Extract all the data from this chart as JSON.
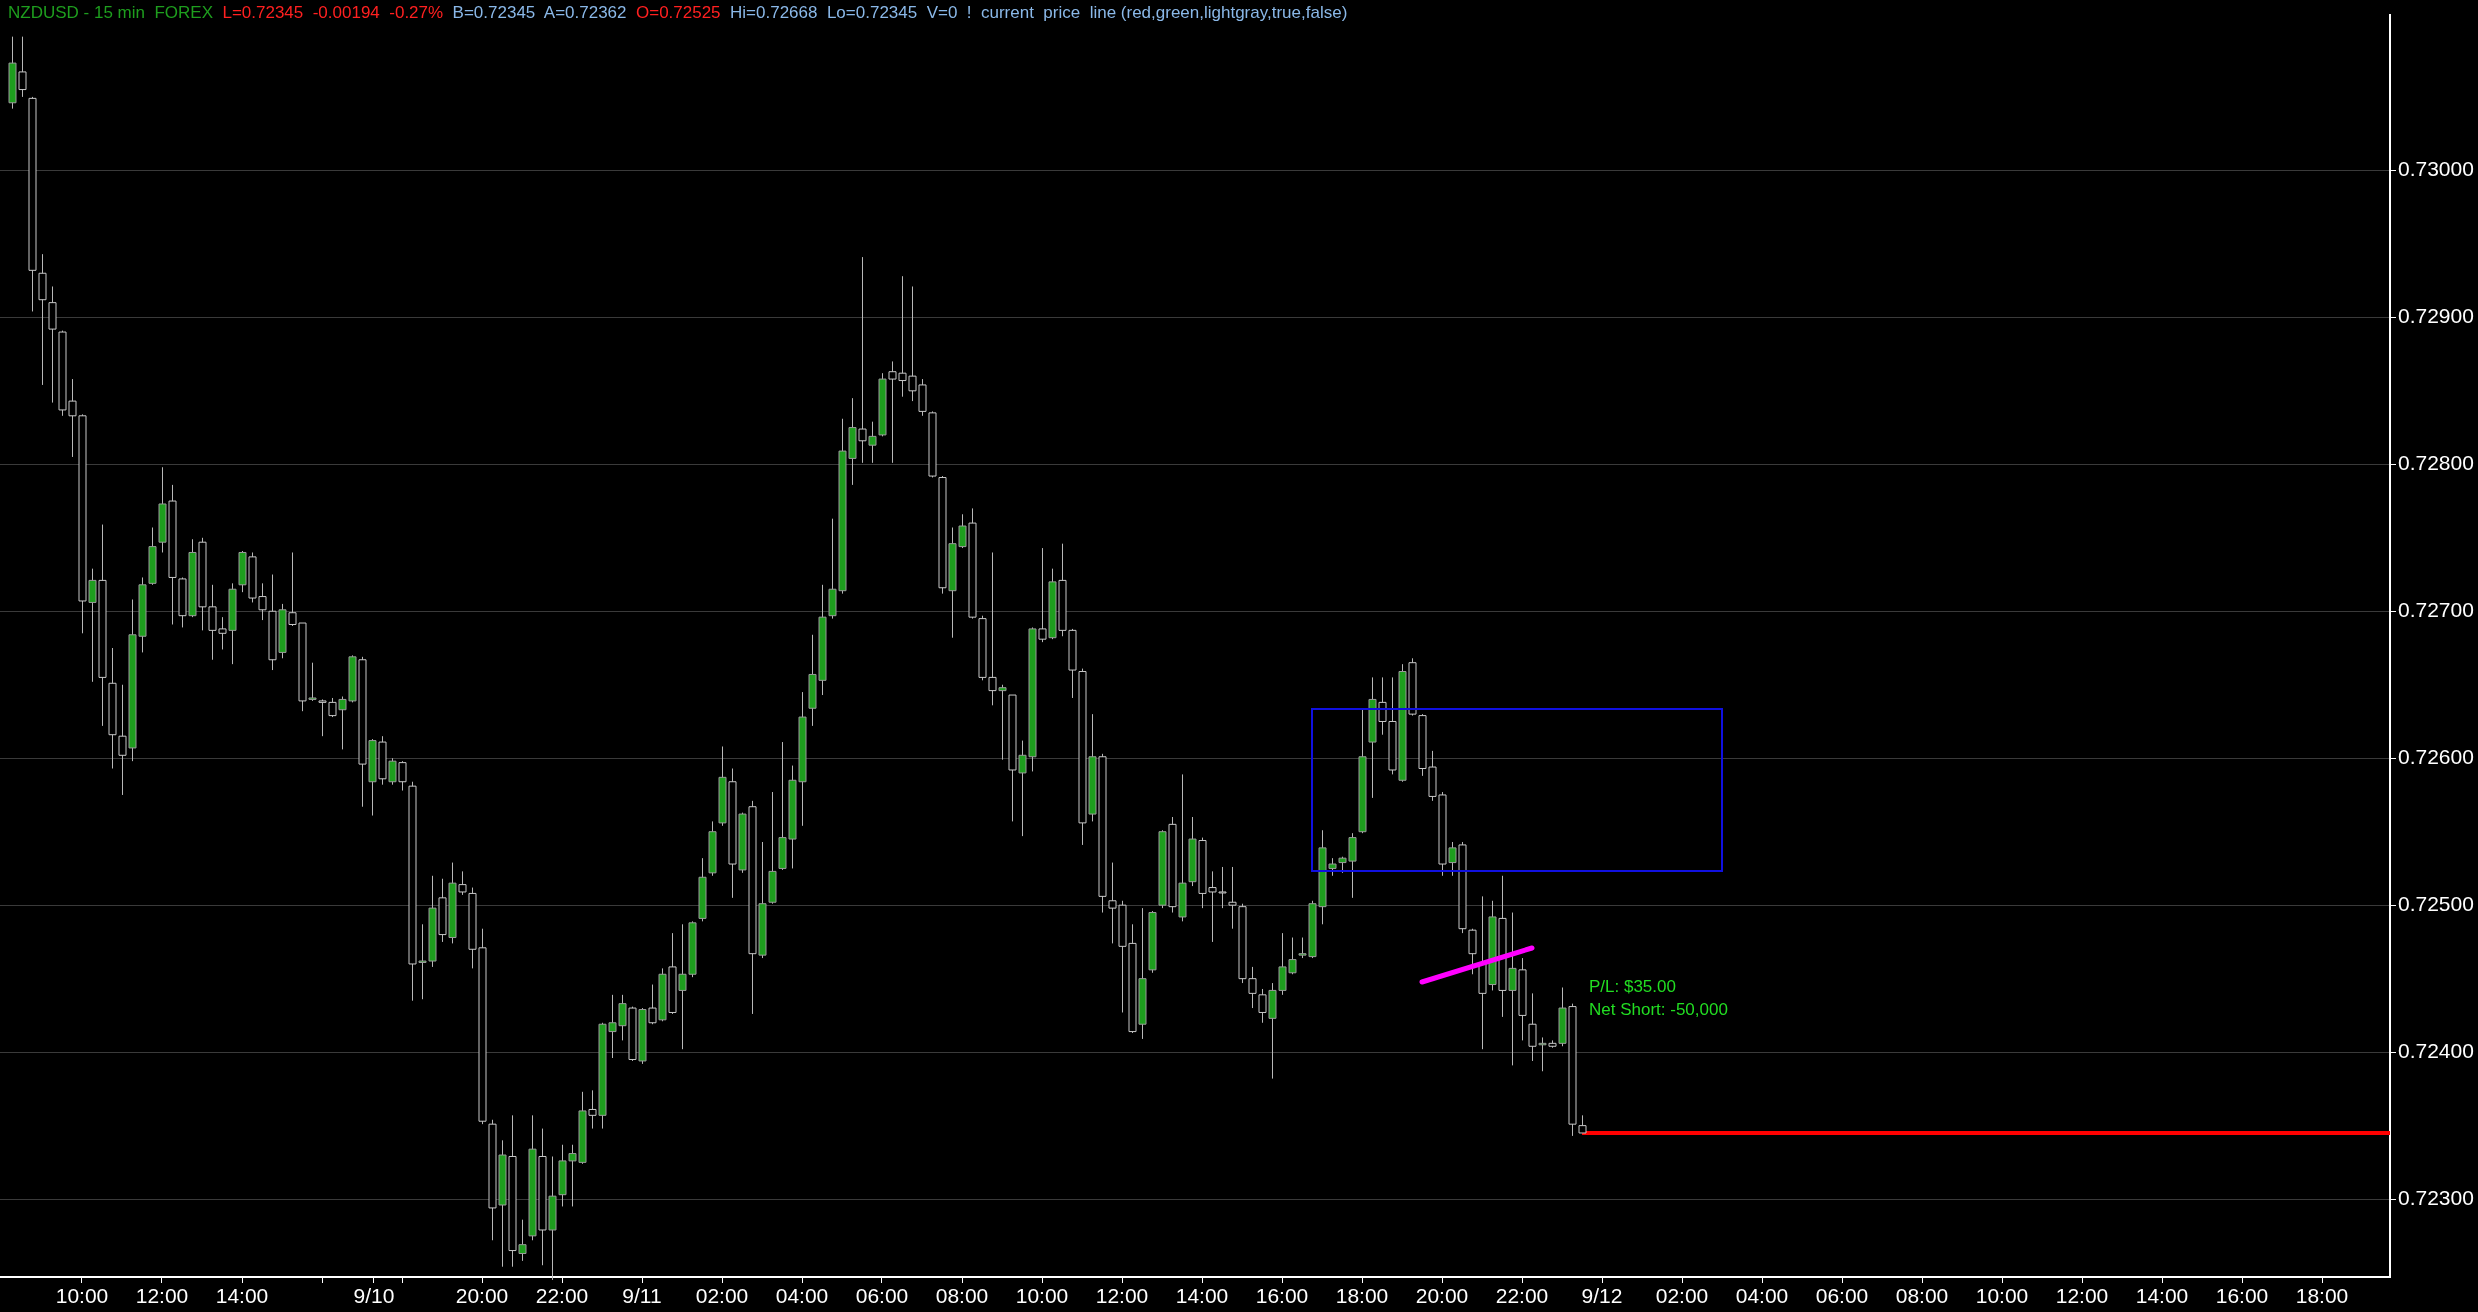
{
  "chart_data": {
    "type": "candlestick",
    "title": "NZDUSD - 15 min  FOREX",
    "annotations": [
      "L=0.72345  -0.00194  -0.27%",
      "B=0.72345  A=0.72362",
      "O=0.72525",
      "Hi=0.72668  Lo=0.72345  V=0  !  current  price  line (red,green,lightgray,true,false)",
      "P/L: $35.00",
      "Net Short: -50,000"
    ],
    "x": [
      "--09-10T08:15",
      "--09-10T08:30",
      "--09-10T08:45",
      "--09-10T09:00",
      "--09-10T09:15",
      "--09-10T09:30",
      "--09-10T09:45",
      "--09-10T10:00",
      "--09-10T10:15",
      "--09-10T10:30",
      "--09-10T10:45",
      "--09-10T11:00",
      "--09-10T11:15",
      "--09-10T11:30",
      "--09-10T11:45",
      "--09-10T12:00",
      "--09-10T12:15",
      "--09-10T12:30",
      "--09-10T12:45",
      "--09-10T13:00",
      "--09-10T13:15",
      "--09-10T13:30",
      "--09-10T13:45",
      "--09-10T14:00",
      "--09-10T14:15",
      "--09-10T14:30",
      "--09-10T14:45",
      "--09-10T15:00",
      "--09-10T15:15",
      "--09-10T15:30",
      "--09-10T15:45",
      "--09-10T16:00",
      "--09-10T16:15",
      "--09-10T16:30",
      "--09-10T16:45",
      "--09-10T17:00",
      "--09-10T17:15",
      "--09-10T17:30",
      "--09-10T17:45",
      "--09-10T18:00",
      "--09-10T18:15",
      "--09-10T18:30",
      "--09-10T18:45",
      "--09-10T19:00",
      "--09-10T19:15",
      "--09-10T19:30",
      "--09-10T19:45",
      "--09-10T20:00",
      "--09-10T20:15",
      "--09-10T20:30",
      "--09-10T20:45",
      "--09-10T21:00",
      "--09-10T21:15",
      "--09-10T21:30",
      "--09-10T21:45",
      "--09-10T22:00",
      "--09-10T22:15",
      "--09-10T22:30",
      "--09-10T22:45",
      "--09-10T23:00",
      "--09-10T23:15",
      "--09-10T23:30",
      "--09-10T23:45",
      "--09-11T00:00",
      "--09-11T00:15",
      "--09-11T00:30",
      "--09-11T00:45",
      "--09-11T01:00",
      "--09-11T01:15",
      "--09-11T01:30",
      "--09-11T01:45",
      "--09-11T02:00",
      "--09-11T02:15",
      "--09-11T02:30",
      "--09-11T02:45",
      "--09-11T03:00",
      "--09-11T03:15",
      "--09-11T03:30",
      "--09-11T03:45",
      "--09-11T04:00",
      "--09-11T04:15",
      "--09-11T04:30",
      "--09-11T04:45",
      "--09-11T05:00",
      "--09-11T05:15",
      "--09-11T05:30",
      "--09-11T05:45",
      "--09-11T06:00",
      "--09-11T06:15",
      "--09-11T06:30",
      "--09-11T06:45",
      "--09-11T07:00",
      "--09-11T07:15",
      "--09-11T07:30",
      "--09-11T07:45",
      "--09-11T08:00",
      "--09-11T08:15",
      "--09-11T08:30",
      "--09-11T08:45",
      "--09-11T09:00",
      "--09-11T09:15",
      "--09-11T09:30",
      "--09-11T09:45",
      "--09-11T10:00",
      "--09-11T10:15",
      "--09-11T10:30",
      "--09-11T10:45",
      "--09-11T11:00",
      "--09-11T11:15",
      "--09-11T11:30",
      "--09-11T11:45",
      "--09-11T12:00",
      "--09-11T12:15",
      "--09-11T12:30",
      "--09-11T12:45",
      "--09-11T13:00",
      "--09-11T13:15",
      "--09-11T13:30",
      "--09-11T13:45",
      "--09-11T14:00",
      "--09-11T14:15",
      "--09-11T14:30",
      "--09-11T14:45",
      "--09-11T15:00",
      "--09-11T15:15",
      "--09-11T15:30",
      "--09-11T15:45",
      "--09-11T16:00",
      "--09-11T16:15",
      "--09-11T16:30",
      "--09-11T16:45",
      "--09-11T17:00",
      "--09-11T17:15",
      "--09-11T17:30",
      "--09-11T17:45",
      "--09-11T18:00",
      "--09-11T18:15",
      "--09-11T18:30",
      "--09-11T18:45",
      "--09-11T19:00",
      "--09-11T19:15",
      "--09-11T19:30",
      "--09-11T19:45",
      "--09-11T20:00",
      "--09-11T20:15",
      "--09-11T20:30",
      "--09-11T20:45",
      "--09-11T21:00",
      "--09-11T21:15",
      "--09-11T21:30",
      "--09-11T21:45",
      "--09-11T22:00",
      "--09-11T22:15",
      "--09-11T22:30",
      "--09-11T22:45",
      "--09-11T23:00",
      "--09-11T23:15",
      "--09-11T23:30"
    ],
    "ohlc": [
      [
        0.73046,
        0.73091,
        0.73042,
        0.73073
      ],
      [
        0.73067,
        0.73091,
        0.7305,
        0.73055
      ],
      [
        0.73049,
        0.7305,
        0.72904,
        0.72932
      ],
      [
        0.7293,
        0.72943,
        0.72854,
        0.72912
      ],
      [
        0.7291,
        0.72921,
        0.72842,
        0.72892
      ],
      [
        0.7289,
        0.72891,
        0.72833,
        0.72837
      ],
      [
        0.72843,
        0.72858,
        0.72805,
        0.72833
      ],
      [
        0.72833,
        0.72834,
        0.72685,
        0.72707
      ],
      [
        0.72706,
        0.72729,
        0.72652,
        0.72721
      ],
      [
        0.72721,
        0.72759,
        0.72622,
        0.72655
      ],
      [
        0.72651,
        0.72675,
        0.72593,
        0.72616
      ],
      [
        0.72615,
        0.7265,
        0.72575,
        0.72602
      ],
      [
        0.72607,
        0.72708,
        0.72598,
        0.72684
      ],
      [
        0.72683,
        0.72723,
        0.72672,
        0.72718
      ],
      [
        0.72719,
        0.72757,
        0.72718,
        0.72744
      ],
      [
        0.72747,
        0.72798,
        0.7274,
        0.72773
      ],
      [
        0.72775,
        0.72786,
        0.72691,
        0.72723
      ],
      [
        0.72722,
        0.72723,
        0.72689,
        0.72697
      ],
      [
        0.72697,
        0.72749,
        0.72696,
        0.7274
      ],
      [
        0.72747,
        0.7275,
        0.72687,
        0.72703
      ],
      [
        0.72703,
        0.72718,
        0.72667,
        0.72687
      ],
      [
        0.72688,
        0.72696,
        0.72674,
        0.72685
      ],
      [
        0.72687,
        0.72719,
        0.72664,
        0.72715
      ],
      [
        0.72718,
        0.72741,
        0.72713,
        0.7274
      ],
      [
        0.72737,
        0.7274,
        0.72706,
        0.72709
      ],
      [
        0.7271,
        0.72719,
        0.72694,
        0.72701
      ],
      [
        0.727,
        0.72725,
        0.7266,
        0.72667
      ],
      [
        0.72672,
        0.72705,
        0.72668,
        0.72701
      ],
      [
        0.72699,
        0.7274,
        0.7269,
        0.72691
      ],
      [
        0.72692,
        0.72692,
        0.72632,
        0.72639
      ],
      [
        0.7264,
        0.72665,
        0.72639,
        0.72641
      ],
      [
        0.72639,
        0.7264,
        0.72615,
        0.72638
      ],
      [
        0.72638,
        0.72641,
        0.72628,
        0.72629
      ],
      [
        0.72633,
        0.72642,
        0.72606,
        0.7264
      ],
      [
        0.72639,
        0.7267,
        0.72638,
        0.72669
      ],
      [
        0.72667,
        0.72669,
        0.72567,
        0.72596
      ],
      [
        0.72584,
        0.72613,
        0.72561,
        0.72612
      ],
      [
        0.72611,
        0.72615,
        0.72582,
        0.72586
      ],
      [
        0.72584,
        0.726,
        0.72582,
        0.72598
      ],
      [
        0.72597,
        0.72598,
        0.72578,
        0.72584
      ],
      [
        0.72581,
        0.72584,
        0.72435,
        0.7246
      ],
      [
        0.72461,
        0.72487,
        0.72436,
        0.72462
      ],
      [
        0.72462,
        0.7252,
        0.72458,
        0.72498
      ],
      [
        0.72505,
        0.72518,
        0.72475,
        0.7248
      ],
      [
        0.72478,
        0.72529,
        0.72474,
        0.72515
      ],
      [
        0.72514,
        0.72523,
        0.72507,
        0.72509
      ],
      [
        0.72508,
        0.72512,
        0.72457,
        0.7247
      ],
      [
        0.72471,
        0.72484,
        0.72351,
        0.72353
      ],
      [
        0.72351,
        0.72354,
        0.72272,
        0.72294
      ],
      [
        0.72296,
        0.7234,
        0.72254,
        0.7233
      ],
      [
        0.72329,
        0.72357,
        0.72254,
        0.72265
      ],
      [
        0.72263,
        0.72286,
        0.72258,
        0.72269
      ],
      [
        0.72275,
        0.72357,
        0.72272,
        0.72334
      ],
      [
        0.72329,
        0.72348,
        0.72255,
        0.72279
      ],
      [
        0.72279,
        0.72329,
        0.72245,
        0.72302
      ],
      [
        0.72303,
        0.72337,
        0.72295,
        0.72326
      ],
      [
        0.72326,
        0.72337,
        0.72295,
        0.72331
      ],
      [
        0.72325,
        0.72373,
        0.72324,
        0.7236
      ],
      [
        0.72361,
        0.72374,
        0.72348,
        0.72357
      ],
      [
        0.72357,
        0.7242,
        0.72348,
        0.72419
      ],
      [
        0.72414,
        0.72439,
        0.72396,
        0.7242
      ],
      [
        0.72418,
        0.72439,
        0.72408,
        0.72433
      ],
      [
        0.7243,
        0.72431,
        0.72394,
        0.72395
      ],
      [
        0.72394,
        0.7243,
        0.72392,
        0.72429
      ],
      [
        0.7243,
        0.72446,
        0.72419,
        0.7242
      ],
      [
        0.72422,
        0.72457,
        0.72421,
        0.72453
      ],
      [
        0.72458,
        0.72481,
        0.72426,
        0.72427
      ],
      [
        0.72442,
        0.72487,
        0.72402,
        0.72453
      ],
      [
        0.72453,
        0.72489,
        0.72451,
        0.72488
      ],
      [
        0.72491,
        0.72532,
        0.72489,
        0.72519
      ],
      [
        0.72522,
        0.72557,
        0.7252,
        0.7255
      ],
      [
        0.72556,
        0.72608,
        0.72554,
        0.72587
      ],
      [
        0.72584,
        0.72593,
        0.72505,
        0.72528
      ],
      [
        0.72524,
        0.72563,
        0.72522,
        0.72562
      ],
      [
        0.72567,
        0.72571,
        0.72426,
        0.72467
      ],
      [
        0.72466,
        0.72543,
        0.72464,
        0.72501
      ],
      [
        0.72502,
        0.72577,
        0.72501,
        0.72523
      ],
      [
        0.72525,
        0.72611,
        0.72524,
        0.72546
      ],
      [
        0.72545,
        0.72595,
        0.72525,
        0.72585
      ],
      [
        0.72584,
        0.72645,
        0.72554,
        0.72628
      ],
      [
        0.72634,
        0.72684,
        0.72622,
        0.72657
      ],
      [
        0.72653,
        0.72718,
        0.72643,
        0.72696
      ],
      [
        0.72697,
        0.72763,
        0.72695,
        0.72715
      ],
      [
        0.72714,
        0.72831,
        0.72712,
        0.72809
      ],
      [
        0.72804,
        0.72845,
        0.72786,
        0.72825
      ],
      [
        0.72824,
        0.72941,
        0.72801,
        0.72816
      ],
      [
        0.72813,
        0.72829,
        0.72801,
        0.72819
      ],
      [
        0.7282,
        0.72862,
        0.72819,
        0.72858
      ],
      [
        0.72863,
        0.7287,
        0.72801,
        0.72858
      ],
      [
        0.72862,
        0.72928,
        0.72846,
        0.72857
      ],
      [
        0.7286,
        0.72921,
        0.72843,
        0.7285
      ],
      [
        0.72854,
        0.72858,
        0.72833,
        0.72836
      ],
      [
        0.72835,
        0.72836,
        0.72791,
        0.72792
      ],
      [
        0.72791,
        0.72792,
        0.72712,
        0.72716
      ],
      [
        0.72714,
        0.72757,
        0.72682,
        0.72746
      ],
      [
        0.72744,
        0.72766,
        0.72743,
        0.72758
      ],
      [
        0.7276,
        0.7277,
        0.72695,
        0.72696
      ],
      [
        0.72695,
        0.72697,
        0.72653,
        0.72655
      ],
      [
        0.72655,
        0.7274,
        0.72636,
        0.72646
      ],
      [
        0.72646,
        0.7265,
        0.72599,
        0.72648
      ],
      [
        0.72643,
        0.72643,
        0.72557,
        0.72592
      ],
      [
        0.7259,
        0.72612,
        0.72547,
        0.72602
      ],
      [
        0.72601,
        0.72689,
        0.72591,
        0.72688
      ],
      [
        0.72688,
        0.72743,
        0.72679,
        0.72681
      ],
      [
        0.72682,
        0.72729,
        0.72681,
        0.7272
      ],
      [
        0.72721,
        0.72746,
        0.72683,
        0.72687
      ],
      [
        0.72687,
        0.72688,
        0.72641,
        0.7266
      ],
      [
        0.72659,
        0.72661,
        0.72541,
        0.72556
      ],
      [
        0.72562,
        0.7263,
        0.72557,
        0.72601
      ],
      [
        0.72601,
        0.72603,
        0.72495,
        0.72506
      ],
      [
        0.72503,
        0.72529,
        0.72474,
        0.72498
      ],
      [
        0.725,
        0.72503,
        0.72427,
        0.72472
      ],
      [
        0.72474,
        0.72487,
        0.72413,
        0.72414
      ],
      [
        0.72419,
        0.72498,
        0.72409,
        0.7245
      ],
      [
        0.72456,
        0.72496,
        0.72454,
        0.72495
      ],
      [
        0.725,
        0.72551,
        0.72498,
        0.7255
      ],
      [
        0.72555,
        0.7256,
        0.72495,
        0.72499
      ],
      [
        0.72492,
        0.72589,
        0.72489,
        0.72515
      ],
      [
        0.72516,
        0.7256,
        0.72513,
        0.72545
      ],
      [
        0.72544,
        0.72546,
        0.72498,
        0.72508
      ],
      [
        0.72512,
        0.72523,
        0.72475,
        0.72509
      ],
      [
        0.72509,
        0.72526,
        0.72498,
        0.72509
      ],
      [
        0.72502,
        0.72526,
        0.72484,
        0.725
      ],
      [
        0.72499,
        0.72501,
        0.72447,
        0.7245
      ],
      [
        0.7245,
        0.72458,
        0.7243,
        0.7244
      ],
      [
        0.72439,
        0.72443,
        0.7242,
        0.72427
      ],
      [
        0.72423,
        0.72447,
        0.72382,
        0.72442
      ],
      [
        0.72442,
        0.72481,
        0.72439,
        0.72458
      ],
      [
        0.72454,
        0.72478,
        0.72453,
        0.72463
      ],
      [
        0.72466,
        0.72478,
        0.72464,
        0.72467
      ],
      [
        0.72465,
        0.72503,
        0.72464,
        0.72501
      ],
      [
        0.72499,
        0.72551,
        0.72487,
        0.72539
      ],
      [
        0.72525,
        0.72532,
        0.7252,
        0.72528
      ],
      [
        0.72529,
        0.72533,
        0.72522,
        0.72532
      ],
      [
        0.7253,
        0.72549,
        0.72505,
        0.72546
      ],
      [
        0.7255,
        0.72633,
        0.72549,
        0.72601
      ],
      [
        0.72611,
        0.72655,
        0.72573,
        0.7264
      ],
      [
        0.72638,
        0.72655,
        0.72616,
        0.72625
      ],
      [
        0.72625,
        0.72655,
        0.72589,
        0.72592
      ],
      [
        0.72585,
        0.72664,
        0.72584,
        0.72659
      ],
      [
        0.72665,
        0.72668,
        0.72629,
        0.7263
      ],
      [
        0.72629,
        0.7263,
        0.72588,
        0.72593
      ],
      [
        0.72594,
        0.72605,
        0.72571,
        0.72574
      ],
      [
        0.72575,
        0.72577,
        0.7252,
        0.72528
      ],
      [
        0.72529,
        0.72543,
        0.7252,
        0.72539
      ],
      [
        0.72541,
        0.72543,
        0.72481,
        0.72484
      ],
      [
        0.72483,
        0.72484,
        0.72453,
        0.72467
      ],
      [
        0.72461,
        0.72506,
        0.72402,
        0.7244
      ],
      [
        0.72446,
        0.72503,
        0.72442,
        0.72492
      ],
      [
        0.72491,
        0.7252,
        0.72424,
        0.72442
      ],
      [
        0.72442,
        0.72495,
        0.72391,
        0.72457
      ],
      [
        0.72456,
        0.72464,
        0.72408,
        0.72425
      ],
      [
        0.72419,
        0.7244,
        0.72394,
        0.72404
      ],
      [
        0.72405,
        0.7241,
        0.72387,
        0.72406
      ],
      [
        0.72406,
        0.72408,
        0.72403,
        0.72404
      ],
      [
        0.72406,
        0.72444,
        0.72404,
        0.7243
      ],
      [
        0.72431,
        0.72433,
        0.72343,
        0.72351
      ],
      [
        0.7235,
        0.72357,
        0.72345,
        0.72345
      ]
    ],
    "xlim": [
      "--09-10T07:57",
      "--09-12T19:42"
    ],
    "ylim": [
      0.72247,
      0.73106
    ],
    "xticks": [
      {
        "value": "--09-10T10:00",
        "label": "10:00"
      },
      {
        "value": "--09-10T12:00",
        "label": "12:00"
      },
      {
        "value": "--09-10T14:00",
        "label": "14:00"
      },
      {
        "value": "--09-10T16:00",
        "label": null
      },
      {
        "value": "--09-10T17:18",
        "label": "9/10"
      },
      {
        "value": "--09-10T18:00",
        "label": null
      },
      {
        "value": "--09-10T20:00",
        "label": "20:00"
      },
      {
        "value": "--09-10T22:00",
        "label": "22:00"
      },
      {
        "value": "--09-11",
        "label": "9/11"
      },
      {
        "value": "--09-11T02:00",
        "label": "02:00"
      },
      {
        "value": "--09-11T04:00",
        "label": "04:00"
      },
      {
        "value": "--09-11T06:00",
        "label": "06:00"
      },
      {
        "value": "--09-11T08:00",
        "label": "08:00"
      },
      {
        "value": "--09-11T10:00",
        "label": "10:00"
      },
      {
        "value": "--09-11T12:00",
        "label": "12:00"
      },
      {
        "value": "--09-11T14:00",
        "label": "14:00"
      },
      {
        "value": "--09-11T16:00",
        "label": "16:00"
      },
      {
        "value": "--09-11T18:00",
        "label": "18:00"
      },
      {
        "value": "--09-11T20:00",
        "label": "20:00"
      },
      {
        "value": "--09-11T22:00",
        "label": "22:00"
      },
      {
        "value": "--09-12",
        "label": "9/12"
      },
      {
        "value": "--09-12T02:00",
        "label": "02:00"
      },
      {
        "value": "--09-12T04:00",
        "label": "04:00"
      },
      {
        "value": "--09-12T06:00",
        "label": "06:00"
      },
      {
        "value": "--09-12T08:00",
        "label": "08:00"
      },
      {
        "value": "--09-12T10:00",
        "label": "10:00"
      },
      {
        "value": "--09-12T12:00",
        "label": "12:00"
      },
      {
        "value": "--09-12T14:00",
        "label": "14:00"
      },
      {
        "value": "--09-12T16:00",
        "label": "16:00"
      },
      {
        "value": "--09-12T18:00",
        "label": "18:00"
      }
    ],
    "yticks": [
      {
        "value": 0.723,
        "label": "0.72300"
      },
      {
        "value": 0.724,
        "label": "0.72400"
      },
      {
        "value": 0.725,
        "label": "0.72500"
      },
      {
        "value": 0.726,
        "label": "0.72600"
      },
      {
        "value": 0.727,
        "label": "0.72700"
      },
      {
        "value": 0.728,
        "label": "0.72800"
      },
      {
        "value": 0.729,
        "label": "0.72900"
      },
      {
        "value": 0.73,
        "label": "0.73000"
      }
    ],
    "grid": "y",
    "ref_lines": [
      {
        "axis": "y",
        "value": 0.72345,
        "color": "#ff0000"
      }
    ]
  }
}
